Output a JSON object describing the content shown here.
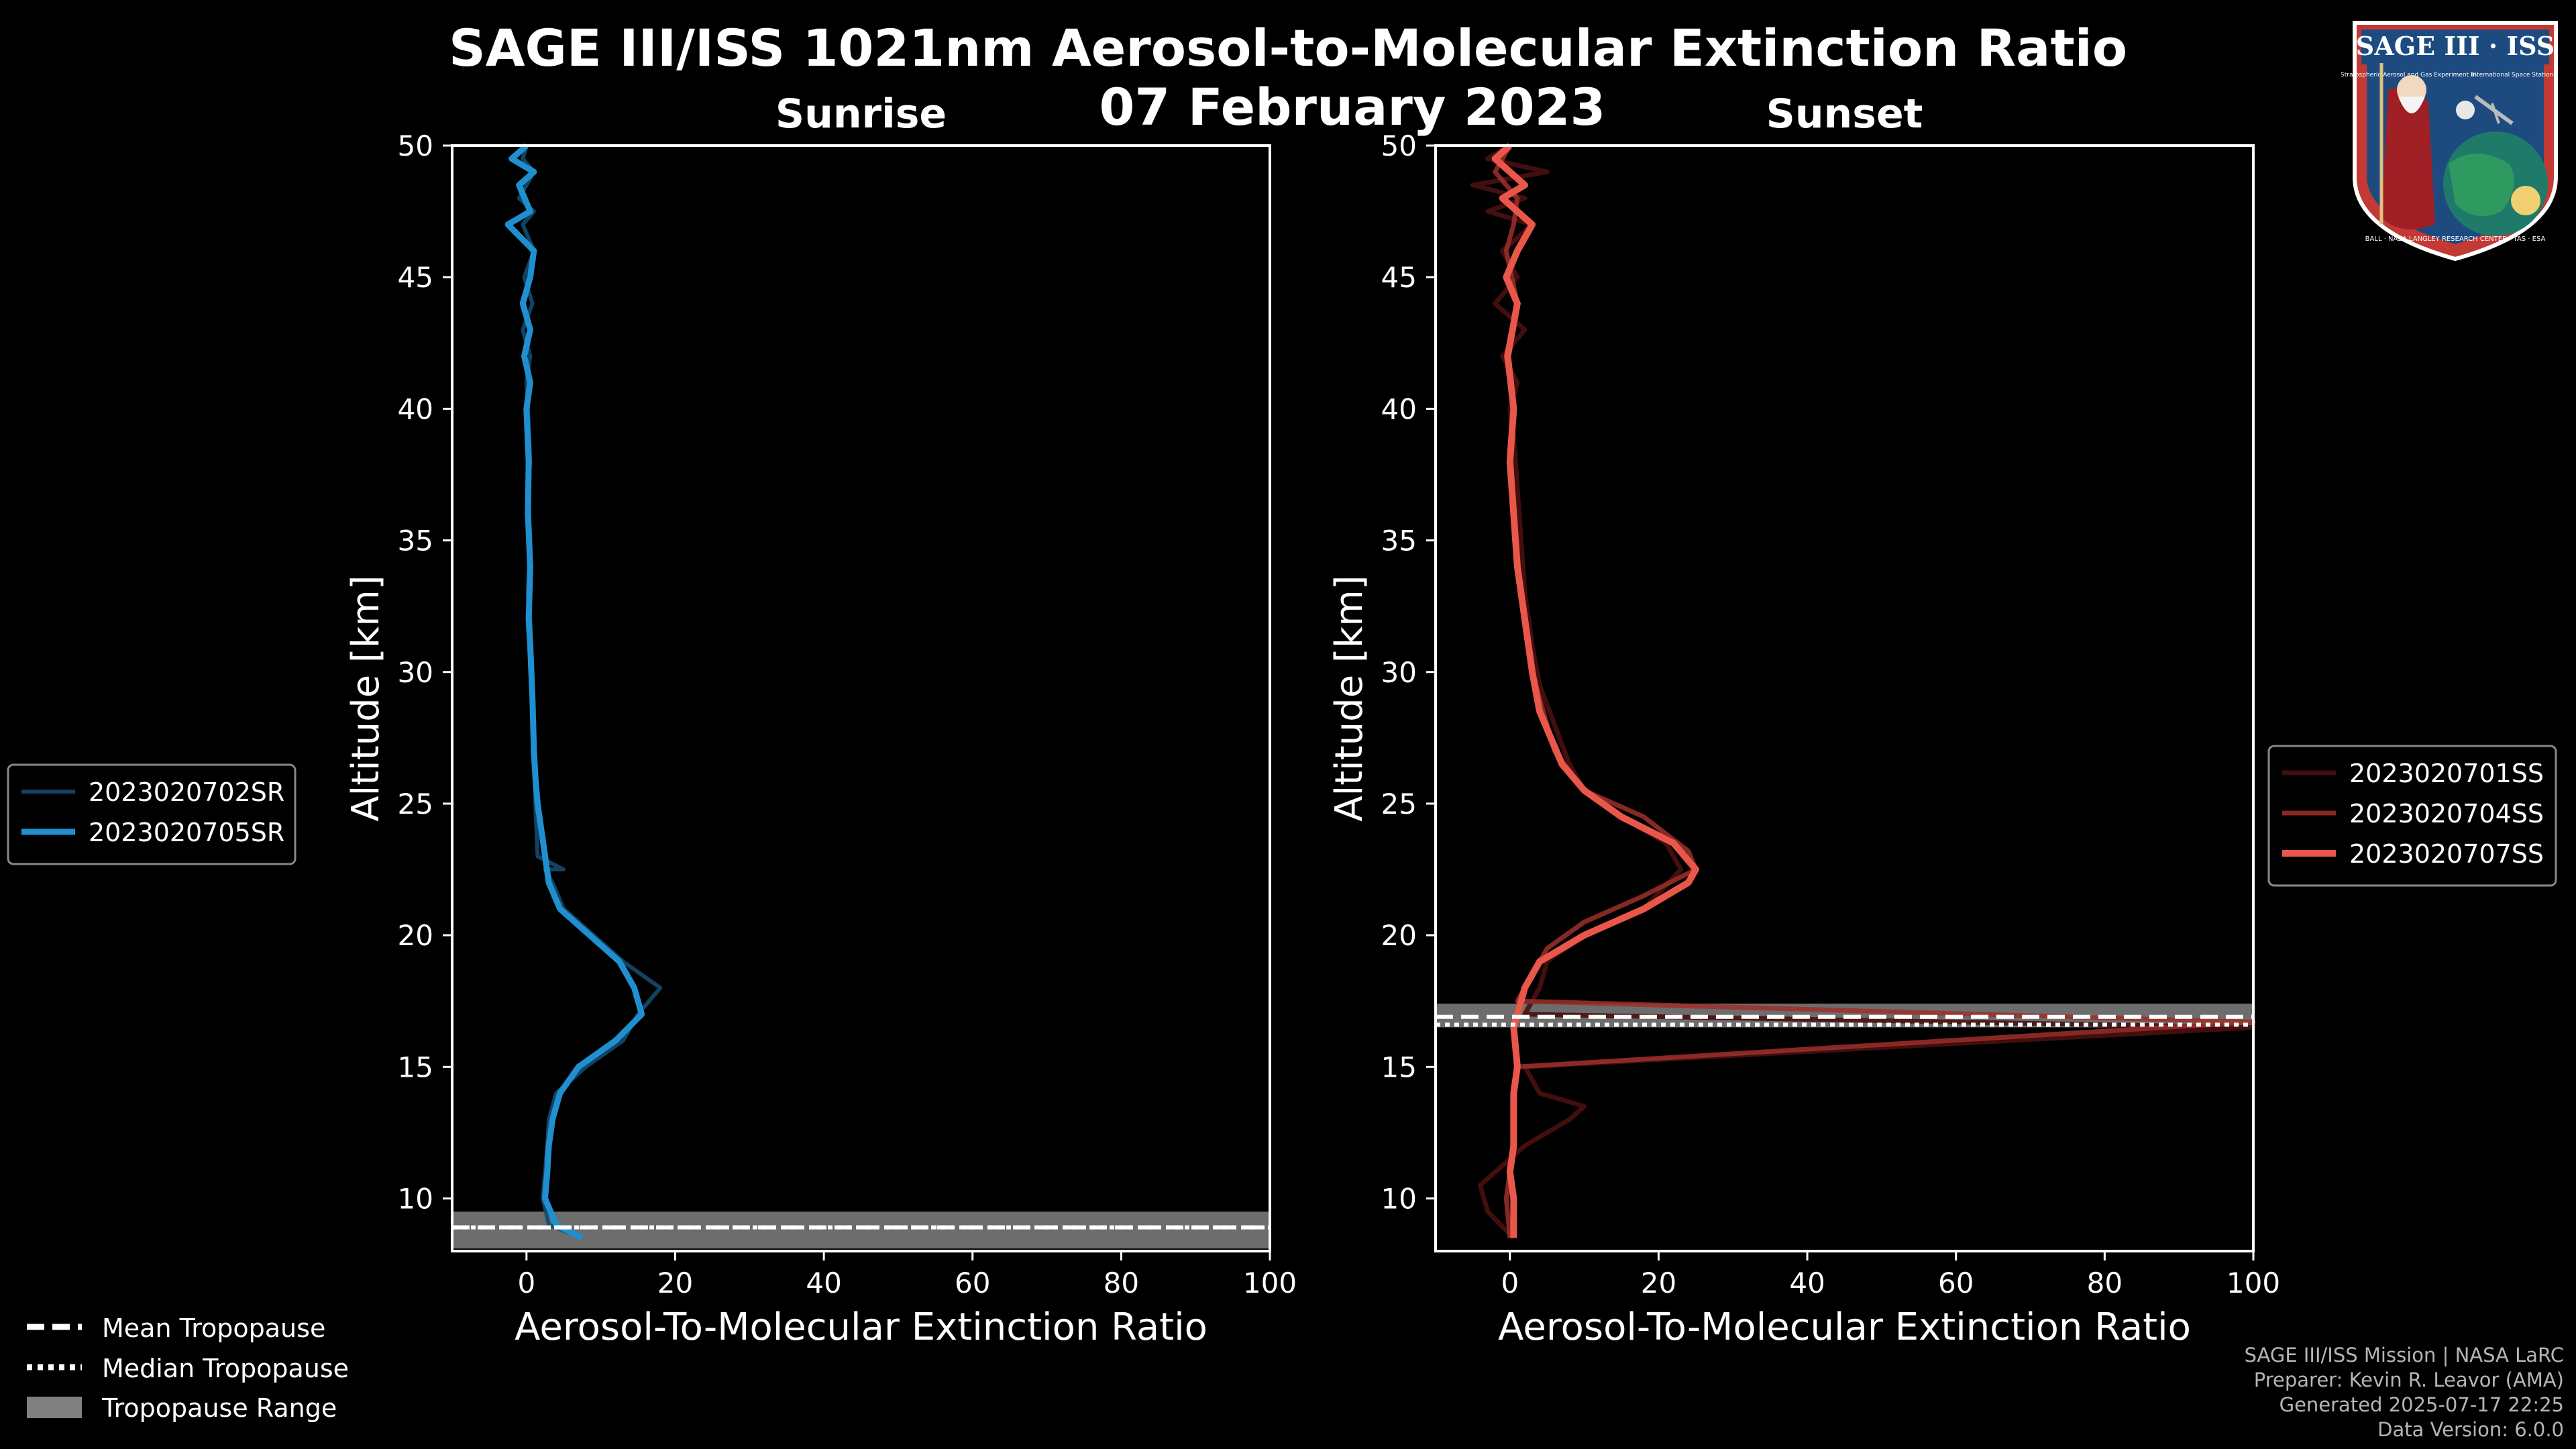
{
  "title": "SAGE III/ISS 1021nm Aerosol-to-Molecular Extinction Ratio",
  "date": "07 February 2023",
  "logo": {
    "text": "SAGE III · ISS",
    "sub1": "Stratospheric Aerosol and Gas Experiment III",
    "sub2": "International Space Station",
    "ring": "BALL · NASA LANGLEY RESEARCH CENTER · TAS · ESA"
  },
  "footer": {
    "line1": "SAGE III/ISS Mission | NASA LaRC",
    "line2": "Preparer: Kevin R. Leavor (AMA)",
    "line3": "Generated 2025-07-17 22:25",
    "line4": "Data Version: 6.0.0"
  },
  "tropopause_legend": [
    "Mean Tropopause",
    "Median Tropopause",
    "Tropopause Range"
  ],
  "colors": {
    "sunrise": "#1f8fd0",
    "sunrise_dim": "#154a6e",
    "sunset": "#e8574a",
    "sunset_mid": "#9e2f2a",
    "sunset_dim": "#4a0f0f",
    "trop_band": "#808080"
  },
  "chart_data": [
    {
      "type": "line",
      "title": "Sunrise",
      "xlabel": "Aerosol-To-Molecular Extinction Ratio",
      "ylabel": "Altitude [km]",
      "xlim": [
        -10,
        100
      ],
      "ylim": [
        8,
        50
      ],
      "xticks": [
        0,
        20,
        40,
        60,
        80,
        100
      ],
      "yticks": [
        10,
        15,
        20,
        25,
        30,
        35,
        40,
        45,
        50
      ],
      "legend_position": "left",
      "tropopause": {
        "mean": 8.9,
        "median": 8.9,
        "range": [
          8.1,
          9.5
        ]
      },
      "series": [
        {
          "name": "2023020702SR",
          "style": "dim",
          "x": [
            7.5,
            3.0,
            2.2,
            2.5,
            2.8,
            3.0,
            4.0,
            8.0,
            13.0,
            15.0,
            18.0,
            13.0,
            9.0,
            5.0,
            3.5,
            2.5,
            5.0,
            1.5,
            1.2,
            1.0,
            0.8,
            0.5,
            0.2,
            0.5,
            0.2,
            0.5,
            0.2,
            0.0,
            0.5,
            -0.5,
            0.8,
            -0.3,
            1.0,
            -0.5,
            1.0,
            -1.0,
            1.0,
            -0.5,
            0.0
          ],
          "y": [
            8.5,
            9.0,
            10.0,
            11.0,
            12.0,
            13.0,
            14.0,
            15.0,
            16.0,
            17.0,
            18.0,
            19.0,
            20.0,
            21.0,
            22.0,
            22.5,
            22.5,
            23.0,
            25.0,
            27.0,
            30.0,
            32.0,
            33.0,
            35.0,
            37.0,
            38.0,
            40.0,
            41.0,
            42.0,
            43.0,
            44.0,
            45.0,
            46.0,
            47.0,
            47.5,
            48.0,
            49.0,
            49.5,
            50.0
          ]
        },
        {
          "name": "2023020705SR",
          "style": "bright",
          "x": [
            7.5,
            4.0,
            2.5,
            2.8,
            3.0,
            3.5,
            4.5,
            7.0,
            12.0,
            15.5,
            14.5,
            12.5,
            8.5,
            4.5,
            3.0,
            2.5,
            2.0,
            1.5,
            1.2,
            1.0,
            0.8,
            0.5,
            0.3,
            0.5,
            0.2,
            0.3,
            0.0,
            0.5,
            -0.3,
            0.5,
            -0.5,
            0.5,
            1.0,
            -2.5,
            0.5,
            -1.0,
            1.0,
            -2.0,
            0.0
          ],
          "y": [
            8.5,
            9.0,
            10.0,
            11.0,
            12.0,
            13.0,
            14.0,
            15.0,
            16.0,
            17.0,
            18.0,
            19.0,
            20.0,
            21.0,
            22.0,
            23.0,
            24.0,
            25.0,
            26.0,
            27.0,
            29.0,
            31.0,
            32.0,
            34.0,
            36.0,
            38.0,
            40.0,
            41.0,
            42.0,
            43.0,
            44.0,
            45.0,
            46.0,
            47.0,
            47.5,
            48.5,
            49.0,
            49.5,
            50.0
          ]
        }
      ]
    },
    {
      "type": "line",
      "title": "Sunset",
      "xlabel": "Aerosol-To-Molecular Extinction Ratio",
      "ylabel": "Altitude [km]",
      "xlim": [
        -10,
        100
      ],
      "ylim": [
        8,
        50
      ],
      "xticks": [
        0,
        20,
        40,
        60,
        80,
        100
      ],
      "yticks": [
        10,
        15,
        20,
        25,
        30,
        35,
        40,
        45,
        50
      ],
      "legend_position": "right",
      "tropopause": {
        "mean": 16.9,
        "median": 16.6,
        "range": [
          16.5,
          17.4
        ]
      },
      "series": [
        {
          "name": "2023020701SS",
          "style": "dim",
          "x": [
            0.5,
            -3.0,
            -4.0,
            2.0,
            8.0,
            10.0,
            4.0,
            2.0,
            100.0,
            2.0,
            4.0,
            5.0,
            10.0,
            18.0,
            23.0,
            21.0,
            15.0,
            10.0,
            8.0,
            6.0,
            4.0,
            3.0,
            2.0,
            1.5,
            1.0,
            0.5,
            0.0,
            1.0,
            -1.0,
            2.0,
            -2.0,
            1.0,
            -1.0,
            3.0,
            -3.0,
            2.0,
            -5.0,
            5.0,
            -3.0,
            0.0
          ],
          "y": [
            8.5,
            9.5,
            10.5,
            12.0,
            13.0,
            13.5,
            14.0,
            15.0,
            16.5,
            17.0,
            18.0,
            19.0,
            20.0,
            21.0,
            22.5,
            23.5,
            24.5,
            25.5,
            26.5,
            28.0,
            29.5,
            31.0,
            33.0,
            35.0,
            37.0,
            39.0,
            40.0,
            41.0,
            42.0,
            43.0,
            44.0,
            45.0,
            46.0,
            47.0,
            47.5,
            48.0,
            48.5,
            49.0,
            49.5,
            50.0
          ]
        },
        {
          "name": "2023020704SS",
          "style": "mid",
          "x": [
            0.0,
            -0.5,
            0.0,
            0.5,
            0.5,
            1.0,
            100.0,
            1.0,
            3.0,
            5.0,
            10.0,
            18.0,
            25.0,
            24.0,
            18.0,
            10.0,
            6.0,
            4.0,
            3.0,
            2.0,
            1.0,
            0.5,
            0.0,
            0.5,
            -0.5,
            1.0,
            -0.5,
            0.5,
            1.0,
            -2.0,
            0.0
          ],
          "y": [
            8.5,
            10.0,
            11.0,
            12.0,
            14.0,
            15.0,
            16.7,
            17.5,
            18.5,
            19.5,
            20.5,
            21.5,
            22.5,
            23.2,
            24.5,
            25.5,
            27.0,
            29.0,
            30.0,
            32.0,
            34.0,
            36.0,
            38.0,
            40.0,
            42.0,
            44.0,
            46.0,
            47.0,
            48.0,
            49.0,
            50.0
          ]
        },
        {
          "name": "2023020707SS",
          "style": "bright",
          "x": [
            0.5,
            0.5,
            0.0,
            0.5,
            0.5,
            1.0,
            0.5,
            2.0,
            4.0,
            10.0,
            18.0,
            24.0,
            25.0,
            22.0,
            15.0,
            10.0,
            7.0,
            4.0,
            3.0,
            2.0,
            1.0,
            0.5,
            0.0,
            0.5,
            -0.3,
            1.0,
            -0.5,
            1.0,
            3.0,
            -1.0,
            2.0,
            -2.0,
            0.0
          ],
          "y": [
            8.5,
            10.0,
            11.0,
            12.0,
            14.0,
            15.0,
            16.5,
            18.0,
            19.0,
            20.0,
            21.0,
            22.0,
            22.5,
            23.5,
            24.5,
            25.5,
            26.5,
            28.5,
            30.0,
            32.0,
            34.0,
            36.0,
            38.0,
            40.0,
            42.0,
            44.0,
            45.0,
            46.0,
            47.0,
            48.0,
            48.5,
            49.5,
            50.0
          ]
        }
      ]
    }
  ]
}
